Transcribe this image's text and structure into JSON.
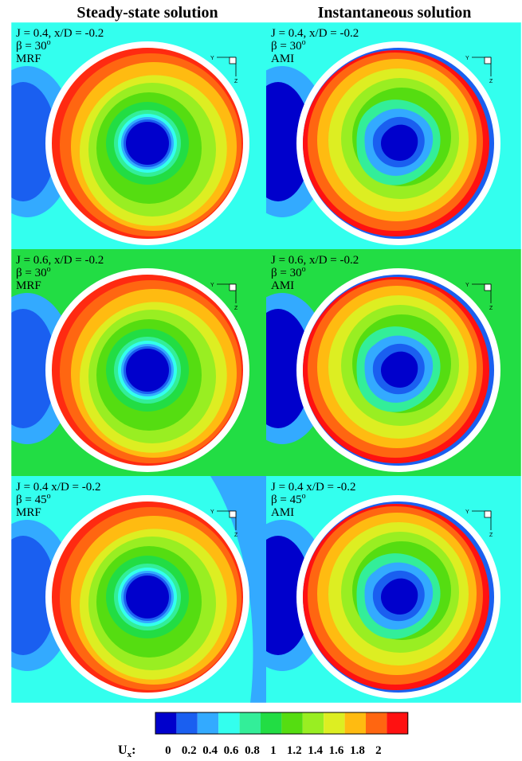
{
  "headers": [
    "Steady-state solution",
    "Instantaneous solution"
  ],
  "panels": [
    {
      "line1": "J = 0.4, x/D = -0.2",
      "beta": "β = 30",
      "beta_sup": "o",
      "method": "MRF"
    },
    {
      "line1": "J = 0.4, x/D = -0.2",
      "beta": "β = 30",
      "beta_sup": "o",
      "method": "AMI"
    },
    {
      "line1": "J = 0.6, x/D = -0.2",
      "beta": "β = 30",
      "beta_sup": "o",
      "method": "MRF"
    },
    {
      "line1": "J = 0.6, x/D = -0.2",
      "beta": "β = 30",
      "beta_sup": "o",
      "method": "AMI"
    },
    {
      "line1": "J = 0.4 x/D = -0.2",
      "beta": "β = 45",
      "beta_sup": "o",
      "method": "MRF"
    },
    {
      "line1": "J = 0.4 x/D = -0.2",
      "beta": "β = 45",
      "beta_sup": "o",
      "method": "AMI"
    }
  ],
  "triad": {
    "y": "Y",
    "z": "Z"
  },
  "colorbar": {
    "symbol": "U",
    "subscript": "x",
    "suffix": ":",
    "ticks": [
      0,
      0.2,
      0.4,
      0.6,
      0.8,
      1,
      1.2,
      1.4,
      1.6,
      1.8,
      2
    ],
    "colors": [
      "#0000cc",
      "#1a5ff0",
      "#33aaff",
      "#33ffee",
      "#33ee99",
      "#22dd44",
      "#55dd11",
      "#99ee22",
      "#ddee22",
      "#ffbb11",
      "#ff6611",
      "#ff1111"
    ]
  }
}
